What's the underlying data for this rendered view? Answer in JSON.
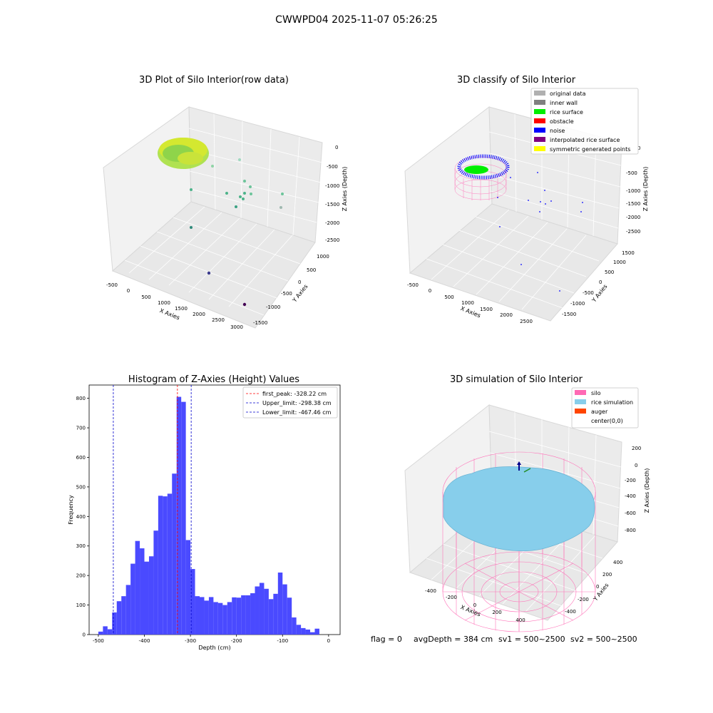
{
  "figure_title": "CWWPD04 2025-11-07 05:26:25",
  "panel1": {
    "title": "3D Plot of Silo Interior(row data)",
    "xlabel": "X Axies",
    "ylabel": "Y Axies",
    "zlabel": "Z Axies (Depth)",
    "x_ticks": [
      "-500",
      "0",
      "500",
      "1000",
      "1500",
      "2000",
      "2500",
      "3000"
    ],
    "y_ticks": [
      "-1500",
      "-1000",
      "-500",
      "0",
      "500",
      "1000"
    ],
    "z_ticks": [
      "0",
      "-500",
      "-1000",
      "-1500",
      "-2000",
      "-2500"
    ]
  },
  "panel2": {
    "title": "3D classify of Silo Interior",
    "xlabel": "X Axies",
    "ylabel": "Y Axies",
    "zlabel": "Z Axies (Depth)",
    "x_ticks": [
      "-500",
      "0",
      "500",
      "1000",
      "1500",
      "2000",
      "2500"
    ],
    "y_ticks": [
      "-1500",
      "-1000",
      "-500",
      "0",
      "500",
      "1000",
      "1500"
    ],
    "z_ticks": [
      "0",
      "-500",
      "-1000",
      "-1500",
      "-2000",
      "-2500"
    ],
    "legend": [
      {
        "label": "original data",
        "color": "#b0b0b0"
      },
      {
        "label": "inner wall",
        "color": "#808080"
      },
      {
        "label": "rice surface",
        "color": "#00ee00"
      },
      {
        "label": "obstacle",
        "color": "#ff0000"
      },
      {
        "label": "noise",
        "color": "#0000ff"
      },
      {
        "label": "interpolated rice surface",
        "color": "#800080"
      },
      {
        "label": "symmetric generated points",
        "color": "#ffff00"
      }
    ]
  },
  "panel3": {
    "chart_data": {
      "type": "bar",
      "title": "Histogram of Z-Axies (Height) Values",
      "xlabel": "Depth (cm)",
      "ylabel": "Frequency",
      "xlim": [
        -520,
        25
      ],
      "ylim": [
        0,
        845
      ],
      "x_ticks": [
        -500,
        -400,
        -300,
        -200,
        -100,
        0
      ],
      "y_ticks": [
        0,
        100,
        200,
        300,
        400,
        500,
        600,
        700,
        800
      ],
      "bin_width": 10,
      "bin_starts": [
        -500,
        -490,
        -480,
        -470,
        -460,
        -450,
        -440,
        -430,
        -420,
        -410,
        -400,
        -390,
        -380,
        -370,
        -360,
        -350,
        -340,
        -330,
        -320,
        -310,
        -300,
        -290,
        -280,
        -270,
        -260,
        -250,
        -240,
        -230,
        -220,
        -210,
        -200,
        -190,
        -180,
        -170,
        -160,
        -150,
        -140,
        -130,
        -120,
        -110,
        -100,
        -90,
        -80,
        -70,
        -60,
        -50,
        -40,
        -30,
        -20,
        -10
      ],
      "counts": [
        10,
        28,
        18,
        75,
        113,
        130,
        168,
        240,
        317,
        292,
        247,
        265,
        352,
        470,
        468,
        477,
        545,
        805,
        788,
        320,
        222,
        130,
        127,
        115,
        127,
        110,
        107,
        100,
        110,
        126,
        125,
        133,
        133,
        140,
        163,
        175,
        155,
        120,
        138,
        210,
        170,
        125,
        58,
        33,
        22,
        17,
        8,
        20,
        0,
        0
      ],
      "bar_color": "#4a4aff",
      "lines": [
        {
          "label": "first_peak: -328.22 cm",
          "x": -328.22,
          "color": "#ff0000"
        },
        {
          "label": "Upper_limit: -298.38 cm",
          "x": -298.38,
          "color": "#0000cc"
        },
        {
          "label": "Lower_limit: -467.46 cm",
          "x": -467.46,
          "color": "#0000cc"
        }
      ]
    }
  },
  "panel4": {
    "title": "3D simulation of Silo Interior",
    "xlabel": "X Axies",
    "ylabel": "Y Axies",
    "zlabel": "Z Axies (Depth)",
    "x_ticks": [
      "-400",
      "-200",
      "0",
      "200",
      "400"
    ],
    "y_ticks": [
      "-400",
      "-200",
      "0",
      "200",
      "400"
    ],
    "z_ticks": [
      "200",
      "0",
      "-200",
      "-400",
      "-600",
      "-800"
    ],
    "legend": [
      {
        "label": "silo",
        "color": "#ff69b4"
      },
      {
        "label": "rice simulation",
        "color": "#87ceeb"
      },
      {
        "label": "auger",
        "color": "#ff4500"
      },
      {
        "label": "center(0,0)",
        "color": ""
      }
    ]
  },
  "footer": {
    "flag": "flag = 0",
    "avg_depth": "avgDepth = 384 cm",
    "sv1": "sv1 = 500~2500",
    "sv2": "sv2 = 500~2500"
  }
}
